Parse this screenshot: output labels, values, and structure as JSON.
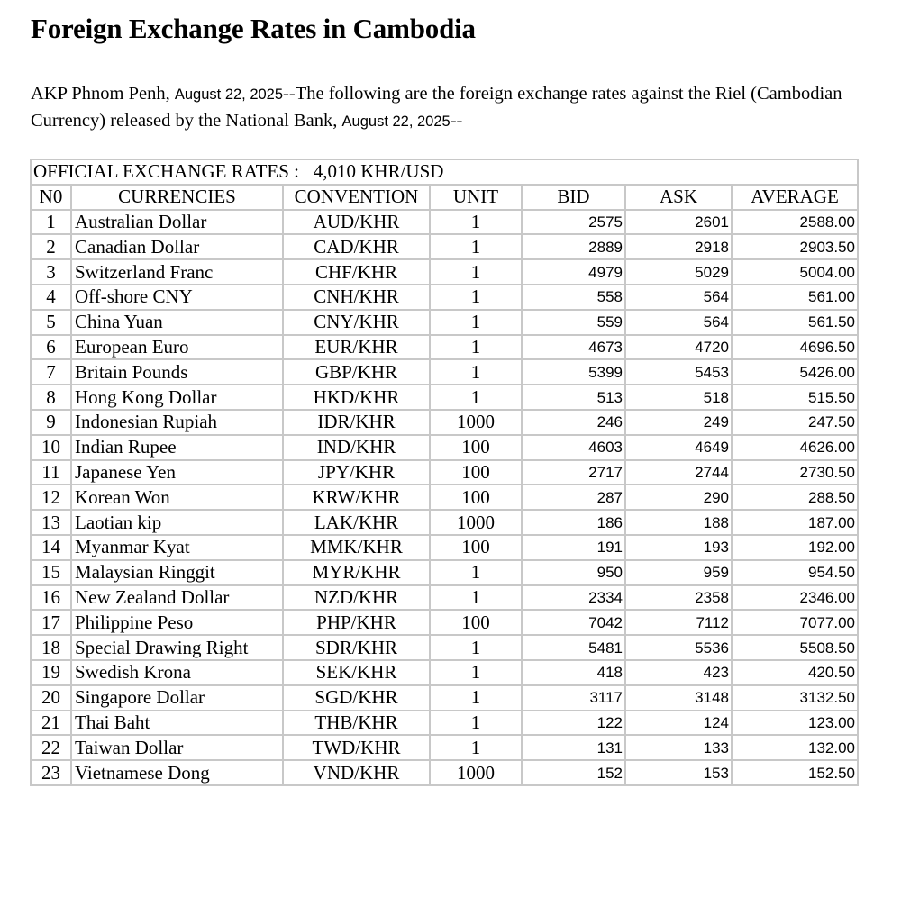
{
  "title": "Foreign Exchange Rates in Cambodia",
  "intro": {
    "part1": "AKP Phnom Penh, ",
    "date1": "August 22, 2025",
    "part2": "--The following are the foreign exchange rates against the Riel (Cambodian Currency) released by the National Bank, ",
    "date2": "August 22, 2025",
    "part3": "--"
  },
  "table": {
    "official_rate": "OFFICIAL EXCHANGE RATES :   4,010 KHR/USD",
    "headers": [
      "N0",
      "CURRENCIES",
      "CONVENTION",
      "UNIT",
      "BID",
      "ASK",
      "AVERAGE"
    ],
    "rows": [
      [
        "1",
        "Australian Dollar",
        "AUD/KHR",
        "1",
        "2575",
        "2601",
        "2588.00"
      ],
      [
        "2",
        "Canadian Dollar",
        "CAD/KHR",
        "1",
        "2889",
        "2918",
        "2903.50"
      ],
      [
        "3",
        "Switzerland Franc",
        "CHF/KHR",
        "1",
        "4979",
        "5029",
        "5004.00"
      ],
      [
        "4",
        "Off-shore CNY",
        "CNH/KHR",
        "1",
        "558",
        "564",
        "561.00"
      ],
      [
        "5",
        "China Yuan",
        "CNY/KHR",
        "1",
        "559",
        "564",
        "561.50"
      ],
      [
        "6",
        "European Euro",
        "EUR/KHR",
        "1",
        "4673",
        "4720",
        "4696.50"
      ],
      [
        "7",
        "Britain Pounds",
        "GBP/KHR",
        "1",
        "5399",
        "5453",
        "5426.00"
      ],
      [
        "8",
        "Hong Kong Dollar",
        "HKD/KHR",
        "1",
        "513",
        "518",
        "515.50"
      ],
      [
        "9",
        "Indonesian Rupiah",
        "IDR/KHR",
        "1000",
        "246",
        "249",
        "247.50"
      ],
      [
        "10",
        "Indian Rupee",
        "IND/KHR",
        "100",
        "4603",
        "4649",
        "4626.00"
      ],
      [
        "11",
        "Japanese Yen",
        "JPY/KHR",
        "100",
        "2717",
        "2744",
        "2730.50"
      ],
      [
        "12",
        "Korean Won",
        "KRW/KHR",
        "100",
        "287",
        "290",
        "288.50"
      ],
      [
        "13",
        "Laotian kip",
        "LAK/KHR",
        "1000",
        "186",
        "188",
        "187.00"
      ],
      [
        "14",
        "Myanmar Kyat",
        "MMK/KHR",
        "100",
        "191",
        "193",
        "192.00"
      ],
      [
        "15",
        "Malaysian Ringgit",
        "MYR/KHR",
        "1",
        "950",
        "959",
        "954.50"
      ],
      [
        "16",
        "New Zealand Dollar",
        "NZD/KHR",
        "1",
        "2334",
        "2358",
        "2346.00"
      ],
      [
        "17",
        "Philippine Peso",
        "PHP/KHR",
        "100",
        "7042",
        "7112",
        "7077.00"
      ],
      [
        "18",
        "Special Drawing Right",
        "SDR/KHR",
        "1",
        "5481",
        "5536",
        "5508.50"
      ],
      [
        "19",
        "Swedish Krona",
        "SEK/KHR",
        "1",
        "418",
        "423",
        "420.50"
      ],
      [
        "20",
        "Singapore Dollar",
        "SGD/KHR",
        "1",
        "3117",
        "3148",
        "3132.50"
      ],
      [
        "21",
        "Thai Baht",
        "THB/KHR",
        "1",
        "122",
        "124",
        "123.00"
      ],
      [
        "22",
        "Taiwan Dollar",
        "TWD/KHR",
        "1",
        "131",
        "133",
        "132.00"
      ],
      [
        "23",
        "Vietnamese Dong",
        "VND/KHR",
        "1000",
        "152",
        "153",
        "152.50"
      ]
    ]
  }
}
